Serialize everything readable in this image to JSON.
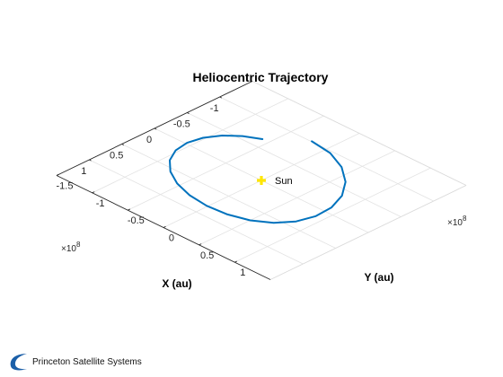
{
  "chart_data": {
    "type": "line",
    "projection": "3d",
    "title": "Heliocentric Trajectory",
    "xlabel": "X (au)",
    "ylabel": "Y (au)",
    "x_exponent": "×10",
    "x_exponent_power": "8",
    "y_exponent": "×10",
    "y_exponent_power": "8",
    "xlim": [
      -1.5,
      1.5
    ],
    "ylim": [
      -1.5,
      1.5
    ],
    "xticks": [
      -1,
      -0.5,
      0,
      0.5,
      1
    ],
    "xtick_labels": [
      "-1",
      "-0.5",
      "0",
      "0.5",
      "1"
    ],
    "yticks": [
      -1.5,
      -1,
      -0.5,
      0,
      0.5,
      1
    ],
    "ytick_labels": [
      "-1.5",
      "-1",
      "-0.5",
      "0",
      "0.5",
      "1"
    ],
    "grid": true,
    "series": [
      {
        "color": "#0072BD",
        "x": [
          -1.007,
          -0.964,
          -0.829,
          -0.625,
          -0.378,
          -0.113,
          0.146,
          0.381,
          0.575,
          0.717,
          0.8,
          0.823,
          0.787,
          0.697,
          0.56,
          0.386,
          0.187,
          -0.023,
          -0.226,
          -0.407,
          -0.555,
          -0.661
        ],
        "y": [
          -0.215,
          0.083,
          0.366,
          0.608,
          0.784,
          0.881,
          0.898,
          0.836,
          0.7,
          0.501,
          0.257,
          -0.012,
          -0.286,
          -0.544,
          -0.764,
          -0.932,
          -1.033,
          -1.063,
          -1.025,
          -0.924,
          -0.774,
          -0.59
        ]
      }
    ],
    "annotations": [
      {
        "label": "Sun",
        "x": 0,
        "y": 0,
        "marker": "plus",
        "color": "#FFE600"
      }
    ]
  },
  "logo_text": "Princeton Satellite Systems"
}
